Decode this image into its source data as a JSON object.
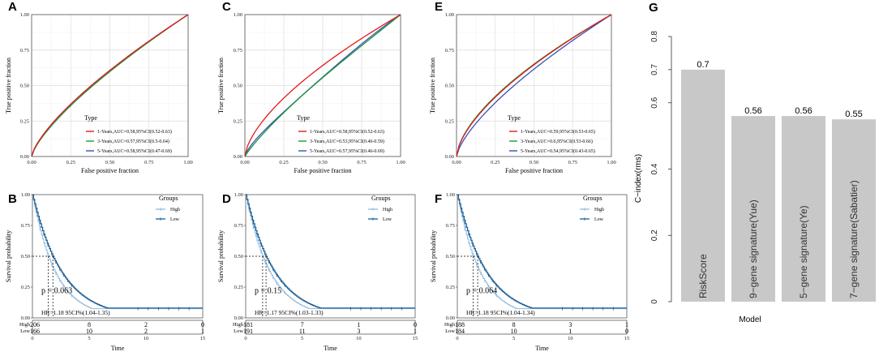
{
  "chart_data": [
    {
      "panel": "A",
      "type": "line",
      "xlabel": "False positive fraction",
      "ylabel": "True positive fraction",
      "xlim": [
        0,
        1
      ],
      "ylim": [
        0,
        1
      ],
      "ticks": [
        "0.00",
        "0.25",
        "0.50",
        "0.75",
        "1.00"
      ],
      "legend_title": "Type",
      "series": [
        {
          "name": "1-Years,AUC=0.58,95%CI(0.52-0.63)",
          "color": "#e41a1c",
          "auc": 0.58
        },
        {
          "name": "3-Years,AUC=0.57,95%CI(0.5-0.64)",
          "color": "#1f9a3a",
          "auc": 0.57
        },
        {
          "name": "5-Years,AUC=0.58,95%CI(0.47-0.69)",
          "color": "#3653b5",
          "auc": 0.58
        }
      ]
    },
    {
      "panel": "C",
      "type": "line",
      "xlabel": "False positive fraction",
      "ylabel": "True positive fraction",
      "xlim": [
        0,
        1
      ],
      "ylim": [
        0,
        1
      ],
      "ticks": [
        "0.00",
        "0.25",
        "0.50",
        "0.75",
        "1.00"
      ],
      "legend_title": "Type",
      "series": [
        {
          "name": "1-Years,AUC=0.58,95%CI(0.52-0.63)",
          "color": "#e41a1c",
          "auc": 0.58
        },
        {
          "name": "3-Years,AUC=0.53,95%CI(0.46-0.59)",
          "color": "#1f9a3a",
          "auc": 0.53
        },
        {
          "name": "5-Years,AUC=0.57,95%CI(0.46-0.69)",
          "color": "#3653b5",
          "auc": 0.57
        }
      ]
    },
    {
      "panel": "E",
      "type": "line",
      "xlabel": "False positive fraction",
      "ylabel": "True positive fraction",
      "xlim": [
        0,
        1
      ],
      "ylim": [
        0,
        1
      ],
      "ticks": [
        "0.00",
        "0.25",
        "0.50",
        "0.75",
        "1.00"
      ],
      "legend_title": "Type",
      "series": [
        {
          "name": "1-Years,AUC=0.59,95%CI(0.53-0.65)",
          "color": "#e41a1c",
          "auc": 0.59
        },
        {
          "name": "3-Years,AUC=0.6,95%CI(0.53-0.66)",
          "color": "#1f9a3a",
          "auc": 0.6
        },
        {
          "name": "5-Years,AUC=0.54,95%CI(0.43-0.65)",
          "color": "#3653b5",
          "auc": 0.54
        }
      ]
    },
    {
      "panel": "B",
      "type": "line",
      "xlabel": "Time",
      "ylabel": "Survival probability",
      "xlim": [
        0,
        15
      ],
      "ylim": [
        0,
        1
      ],
      "yticks": [
        "0.00",
        "0.25",
        "0.50",
        "0.75",
        "1.00"
      ],
      "xticks": [
        "0",
        "5",
        "10",
        "15"
      ],
      "legend_title": "Groups",
      "p_value": "p = 0.063",
      "hr": "HR=1.18 95CI%(1.04-1.35)",
      "median_high": 1.4,
      "median_low": 1.8,
      "series": [
        {
          "name": "High",
          "color": "#8db9dd"
        },
        {
          "name": "Low",
          "color": "#1d5f96"
        }
      ],
      "risk_table": {
        "times": [
          "0",
          "5",
          "10",
          "15"
        ],
        "high": [
          "206",
          "8",
          "2",
          "0"
        ],
        "low": [
          "166",
          "10",
          "2",
          "1"
        ]
      }
    },
    {
      "panel": "D",
      "type": "line",
      "xlabel": "Time",
      "ylabel": "Survival probability",
      "xlim": [
        0,
        15
      ],
      "ylim": [
        0,
        1
      ],
      "yticks": [
        "0.00",
        "0.25",
        "0.50",
        "0.75",
        "1.00"
      ],
      "xticks": [
        "0",
        "5",
        "10",
        "15"
      ],
      "legend_title": "Groups",
      "p_value": "p = 0.15",
      "hr": "HR=1.17 95CI%(1.03-1.33)",
      "median_high": 1.5,
      "median_low": 1.8,
      "series": [
        {
          "name": "High",
          "color": "#8db9dd"
        },
        {
          "name": "Low",
          "color": "#1d5f96"
        }
      ],
      "risk_table": {
        "times": [
          "0",
          "5",
          "10",
          "15"
        ],
        "high": [
          "181",
          "7",
          "1",
          "0"
        ],
        "low": [
          "191",
          "11",
          "3",
          "1"
        ]
      }
    },
    {
      "panel": "F",
      "type": "line",
      "xlabel": "Time",
      "ylabel": "Survival probability",
      "xlim": [
        0,
        15
      ],
      "ylim": [
        0,
        1
      ],
      "yticks": [
        "0.00",
        "0.25",
        "0.50",
        "0.75",
        "1.00"
      ],
      "xticks": [
        "0",
        "5",
        "10",
        "15"
      ],
      "legend_title": "Groups",
      "p_value": "p = 0.064",
      "hr": "HR=1.18 95CI%(1.04-1.34)",
      "median_high": 1.4,
      "median_low": 1.8,
      "series": [
        {
          "name": "High",
          "color": "#8db9dd"
        },
        {
          "name": "Low",
          "color": "#1d5f96"
        }
      ],
      "risk_table": {
        "times": [
          "0",
          "5",
          "10",
          "15"
        ],
        "high": [
          "188",
          "8",
          "3",
          "1"
        ],
        "low": [
          "184",
          "10",
          "1",
          "0"
        ]
      }
    },
    {
      "panel": "G",
      "type": "bar",
      "xlabel": "Model",
      "ylabel": "C−index(rms)",
      "ylim": [
        0,
        0.8
      ],
      "yticks": [
        "0",
        "0.2",
        "0.4",
        "0.6",
        "0.7",
        "0.8"
      ],
      "categories": [
        "RiskScore",
        "9−gene signature(Yue)",
        "5−gene signature(Ye)",
        "7−gene signature(Sabatier)"
      ],
      "values": [
        0.7,
        0.56,
        0.56,
        0.55
      ],
      "labels": [
        "0.7",
        "0.56",
        "0.56",
        "0.55"
      ],
      "bar_color": "#c8c8c8"
    }
  ]
}
